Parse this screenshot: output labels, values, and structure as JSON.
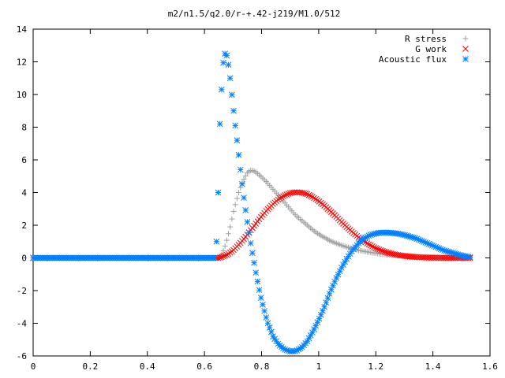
{
  "chart_data": {
    "type": "scatter",
    "title": "m2/n1.5/q2.0/r-+.42-j219/M1.0/512",
    "xlabel": "",
    "ylabel": "",
    "xlim": [
      0,
      1.6
    ],
    "ylim": [
      -6,
      14
    ],
    "xticks": [
      "0",
      "0.2",
      "0.4",
      "0.6",
      "0.8",
      "1",
      "1.2",
      "1.4",
      "1.6"
    ],
    "yticks": [
      "-6",
      "-4",
      "-2",
      "0",
      "2",
      "4",
      "6",
      "8",
      "10",
      "12",
      "14"
    ],
    "grid": false,
    "legend_position": "top-right",
    "series": [
      {
        "name": "R stress",
        "marker": "plus",
        "color": "#a0a0a0",
        "x": [
          0.0,
          0.1,
          0.2,
          0.3,
          0.4,
          0.5,
          0.6,
          0.65,
          0.66,
          0.67,
          0.68,
          0.69,
          0.7,
          0.71,
          0.72,
          0.73,
          0.74,
          0.75,
          0.76,
          0.77,
          0.78,
          0.8,
          0.82,
          0.84,
          0.86,
          0.88,
          0.9,
          0.92,
          0.94,
          0.96,
          0.98,
          1.0,
          1.02,
          1.04,
          1.06,
          1.08,
          1.1,
          1.12,
          1.14,
          1.16,
          1.18,
          1.2,
          1.22,
          1.24,
          1.26,
          1.28,
          1.3,
          1.32,
          1.34,
          1.36,
          1.38,
          1.4,
          1.42,
          1.44,
          1.46,
          1.48,
          1.5,
          1.52,
          1.53
        ],
        "y": [
          0,
          0,
          0,
          0,
          0,
          0,
          0,
          0,
          0.2,
          0.6,
          1.2,
          1.9,
          2.7,
          3.4,
          4.0,
          4.5,
          4.9,
          5.2,
          5.35,
          5.35,
          5.25,
          4.95,
          4.6,
          4.2,
          3.8,
          3.4,
          3.0,
          2.6,
          2.3,
          2.0,
          1.7,
          1.45,
          1.25,
          1.05,
          0.9,
          0.77,
          0.65,
          0.55,
          0.47,
          0.4,
          0.34,
          0.29,
          0.24,
          0.2,
          0.17,
          0.14,
          0.12,
          0.1,
          0.08,
          0.07,
          0.06,
          0.05,
          0.04,
          0.03,
          0.02,
          0.02,
          0.01,
          0.01,
          0.01
        ]
      },
      {
        "name": "G work",
        "marker": "cross",
        "color": "#ff0000",
        "x": [
          0.0,
          0.1,
          0.2,
          0.3,
          0.4,
          0.5,
          0.6,
          0.65,
          0.66,
          0.68,
          0.7,
          0.72,
          0.74,
          0.76,
          0.78,
          0.8,
          0.82,
          0.84,
          0.86,
          0.88,
          0.9,
          0.92,
          0.94,
          0.96,
          0.98,
          1.0,
          1.02,
          1.04,
          1.06,
          1.08,
          1.1,
          1.12,
          1.14,
          1.16,
          1.18,
          1.2,
          1.22,
          1.24,
          1.26,
          1.28,
          1.3,
          1.32,
          1.34,
          1.36,
          1.38,
          1.4,
          1.42,
          1.44,
          1.46,
          1.48,
          1.5,
          1.52,
          1.53
        ],
        "y": [
          0,
          0,
          0,
          0,
          0,
          0,
          0,
          0,
          0.05,
          0.2,
          0.45,
          0.8,
          1.2,
          1.65,
          2.1,
          2.55,
          2.95,
          3.3,
          3.6,
          3.82,
          3.97,
          4.02,
          4.0,
          3.9,
          3.72,
          3.48,
          3.2,
          2.88,
          2.55,
          2.2,
          1.86,
          1.55,
          1.26,
          1.0,
          0.78,
          0.6,
          0.45,
          0.33,
          0.24,
          0.17,
          0.12,
          0.08,
          0.05,
          0.03,
          0.02,
          0.01,
          0.0,
          0.0,
          0.0,
          0.0,
          0.0,
          0.0,
          0.0
        ]
      },
      {
        "name": "Acoustic flux",
        "marker": "star",
        "color": "#0080ff",
        "x": [
          0.0,
          0.1,
          0.2,
          0.3,
          0.4,
          0.5,
          0.6,
          0.64,
          0.65,
          0.655,
          0.66,
          0.665,
          0.67,
          0.675,
          0.68,
          0.685,
          0.69,
          0.7,
          0.71,
          0.72,
          0.73,
          0.74,
          0.75,
          0.76,
          0.77,
          0.78,
          0.79,
          0.8,
          0.82,
          0.84,
          0.86,
          0.88,
          0.9,
          0.92,
          0.94,
          0.96,
          0.98,
          1.0,
          1.02,
          1.04,
          1.06,
          1.08,
          1.1,
          1.12,
          1.14,
          1.16,
          1.18,
          1.2,
          1.22,
          1.24,
          1.26,
          1.28,
          1.3,
          1.32,
          1.34,
          1.36,
          1.38,
          1.4,
          1.42,
          1.44,
          1.46,
          1.48,
          1.5,
          1.52,
          1.53
        ],
        "y": [
          0,
          0,
          0,
          0,
          0,
          0,
          0,
          0,
          5.0,
          9.0,
          10.3,
          11.8,
          12.5,
          12.5,
          12.3,
          11.7,
          11.0,
          9.3,
          7.8,
          6.3,
          4.8,
          3.4,
          2.2,
          1.1,
          0.1,
          -0.9,
          -1.8,
          -2.6,
          -3.9,
          -4.8,
          -5.3,
          -5.6,
          -5.72,
          -5.7,
          -5.5,
          -5.1,
          -4.5,
          -3.8,
          -3.0,
          -2.1,
          -1.3,
          -0.6,
          0.0,
          0.5,
          0.9,
          1.2,
          1.4,
          1.5,
          1.55,
          1.55,
          1.52,
          1.48,
          1.4,
          1.3,
          1.2,
          1.05,
          0.9,
          0.75,
          0.6,
          0.45,
          0.35,
          0.25,
          0.15,
          0.08,
          0.05
        ]
      }
    ]
  }
}
